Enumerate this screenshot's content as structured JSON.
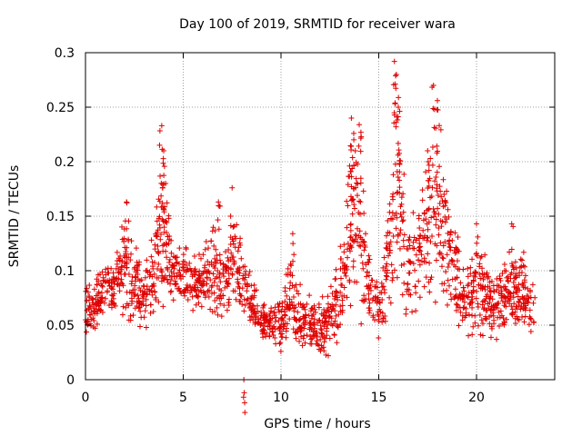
{
  "chart_data": {
    "type": "scatter",
    "title": "Day 100 of 2019, SRMTID for receiver wara",
    "xlabel": "GPS time / hours",
    "ylabel": "SRMTID / TECUs",
    "xlim": [
      0,
      24
    ],
    "ylim": [
      0,
      0.3
    ],
    "xticks": [
      0,
      5,
      10,
      15,
      20
    ],
    "xtick_labels": [
      "0",
      "5",
      "10",
      "15",
      "20"
    ],
    "yticks": [
      0,
      0.05,
      0.1,
      0.15,
      0.2,
      0.25,
      0.3
    ],
    "ytick_labels": [
      "0",
      "0.05",
      "0.1",
      "0.15",
      "0.2",
      "0.25",
      "0.3"
    ],
    "grid": true,
    "marker": "+",
    "colors": {
      "series": "#e00000",
      "grid": "#a0a0a0",
      "axis": "#000000"
    },
    "series": [
      {
        "name": "SRMTID",
        "points_note": "approximately 3000 observations spanning 0–23 h; representative subset listed, remainder follows the same envelope",
        "envelope": [
          [
            0.0,
            0.03,
            0.1
          ],
          [
            0.5,
            0.04,
            0.1
          ],
          [
            1.0,
            0.05,
            0.12
          ],
          [
            1.5,
            0.05,
            0.12
          ],
          [
            2.0,
            0.05,
            0.16
          ],
          [
            2.5,
            0.04,
            0.14
          ],
          [
            3.0,
            0.04,
            0.11
          ],
          [
            3.5,
            0.04,
            0.15
          ],
          [
            4.0,
            0.05,
            0.23
          ],
          [
            4.5,
            0.06,
            0.13
          ],
          [
            5.0,
            0.06,
            0.13
          ],
          [
            5.5,
            0.06,
            0.12
          ],
          [
            6.0,
            0.05,
            0.12
          ],
          [
            6.5,
            0.05,
            0.16
          ],
          [
            7.0,
            0.05,
            0.12
          ],
          [
            7.5,
            0.05,
            0.17
          ],
          [
            8.0,
            0.05,
            0.13
          ],
          [
            8.5,
            0.04,
            0.1
          ],
          [
            9.0,
            0.03,
            0.08
          ],
          [
            9.5,
            0.03,
            0.07
          ],
          [
            10.0,
            0.02,
            0.08
          ],
          [
            10.5,
            0.02,
            0.13
          ],
          [
            11.0,
            0.02,
            0.09
          ],
          [
            11.5,
            0.02,
            0.08
          ],
          [
            12.0,
            0.02,
            0.07
          ],
          [
            12.5,
            0.02,
            0.1
          ],
          [
            13.0,
            0.03,
            0.12
          ],
          [
            13.5,
            0.05,
            0.24
          ],
          [
            14.0,
            0.05,
            0.23
          ],
          [
            14.5,
            0.04,
            0.12
          ],
          [
            15.0,
            0.03,
            0.09
          ],
          [
            15.5,
            0.04,
            0.2
          ],
          [
            16.0,
            0.05,
            0.29
          ],
          [
            16.5,
            0.05,
            0.14
          ],
          [
            17.0,
            0.05,
            0.18
          ],
          [
            17.5,
            0.06,
            0.22
          ],
          [
            18.0,
            0.06,
            0.27
          ],
          [
            18.5,
            0.05,
            0.2
          ],
          [
            19.0,
            0.04,
            0.14
          ],
          [
            19.5,
            0.04,
            0.12
          ],
          [
            20.0,
            0.03,
            0.14
          ],
          [
            20.5,
            0.03,
            0.12
          ],
          [
            21.0,
            0.03,
            0.11
          ],
          [
            21.5,
            0.03,
            0.13
          ],
          [
            22.0,
            0.03,
            0.13
          ],
          [
            22.5,
            0.03,
            0.12
          ],
          [
            23.0,
            0.03,
            0.1
          ]
        ],
        "peaks": [
          [
            3.9,
            0.233
          ],
          [
            4.0,
            0.21
          ],
          [
            4.1,
            0.18
          ],
          [
            6.8,
            0.163
          ],
          [
            7.5,
            0.176
          ],
          [
            2.1,
            0.163
          ],
          [
            13.6,
            0.24
          ],
          [
            13.8,
            0.21
          ],
          [
            14.0,
            0.234
          ],
          [
            15.8,
            0.292
          ],
          [
            15.9,
            0.28
          ],
          [
            16.0,
            0.25
          ],
          [
            17.8,
            0.27
          ],
          [
            18.0,
            0.256
          ],
          [
            17.5,
            0.21
          ],
          [
            10.6,
            0.134
          ],
          [
            20.0,
            0.143
          ],
          [
            21.8,
            0.143
          ],
          [
            8.1,
            0.0
          ]
        ]
      }
    ]
  }
}
